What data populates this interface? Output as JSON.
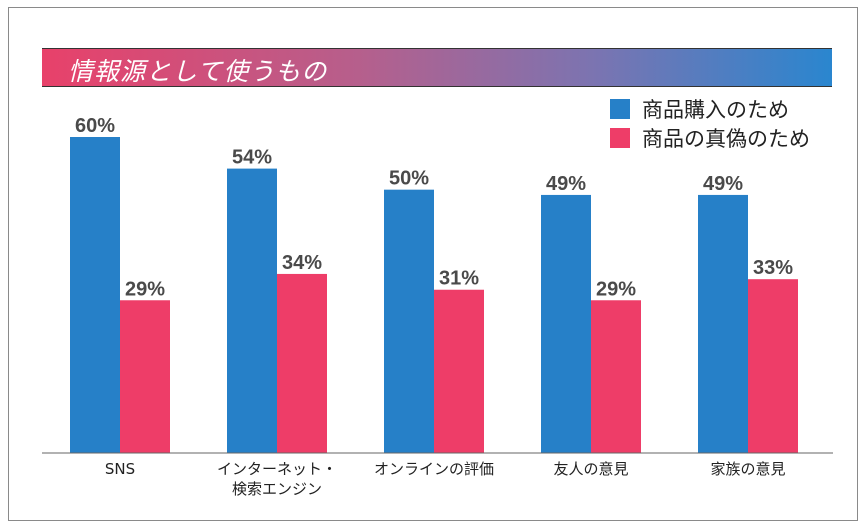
{
  "chart_data": {
    "type": "bar",
    "title": "情報源として使うもの",
    "categories": [
      "SNS",
      "インターネット・\n検索エンジン",
      "オンラインの評価",
      "友人の意見",
      "家族の意見"
    ],
    "series": [
      {
        "name": "商品購入のため",
        "color": "#2680c8",
        "values": [
          60,
          54,
          50,
          49,
          49
        ],
        "labels": [
          "60%",
          "54%",
          "50%",
          "49%",
          "49%"
        ]
      },
      {
        "name": "商品の真偽のため",
        "color": "#ee3d68",
        "values": [
          29,
          34,
          31,
          29,
          33
        ],
        "labels": [
          "29%",
          "34%",
          "31%",
          "29%",
          "33%"
        ]
      }
    ],
    "ylim": [
      0,
      60
    ],
    "xlabel": "",
    "ylabel": "",
    "grid": false,
    "legend": "top-right"
  }
}
